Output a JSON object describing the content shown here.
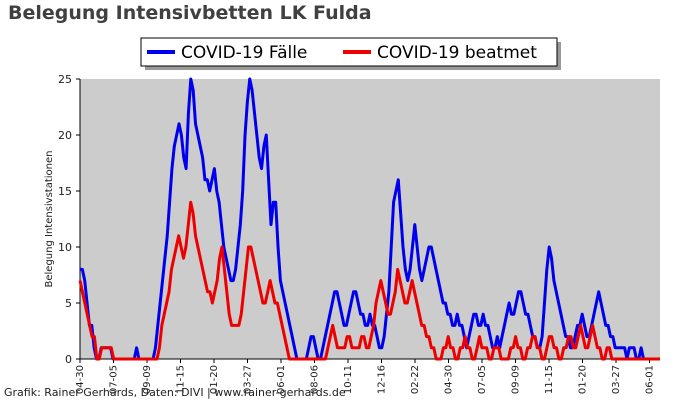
{
  "footer": "Grafik: Rainer Gerhards, Daten: DIVI | www.rainer-gerhards.de",
  "chart_data": {
    "type": "line",
    "title": "Belegung Intensivbetten LK Fulda",
    "xlabel": "",
    "ylabel": "Belegung Intensivstationen",
    "ylim": [
      0,
      25
    ],
    "yticks": [
      0,
      5,
      10,
      15,
      20,
      25
    ],
    "xticks": [
      "04-30",
      "07-05",
      "09-09",
      "11-15",
      "01-20",
      "03-27",
      "06-01",
      "08-06",
      "10-11",
      "12-16",
      "02-22",
      "04-30",
      "07-05",
      "09-09",
      "11-15",
      "01-20",
      "03-27",
      "06-01"
    ],
    "grid": false,
    "legend_position": "top-center",
    "background": "#cccccc",
    "series": [
      {
        "name": "COVID-19 Fälle",
        "color": "#0000ee",
        "values": [
          8,
          8,
          7,
          5,
          3,
          3,
          1,
          0,
          0,
          1,
          1,
          1,
          1,
          1,
          0,
          0,
          0,
          0,
          0,
          0,
          0,
          0,
          0,
          0,
          1,
          0,
          0,
          0,
          0,
          0,
          0,
          0,
          1,
          3,
          5,
          7,
          9,
          11,
          14,
          17,
          19,
          20,
          21,
          20,
          18,
          17,
          22,
          25,
          24,
          21,
          20,
          19,
          18,
          16,
          16,
          15,
          16,
          17,
          15,
          14,
          12,
          10,
          9,
          8,
          7,
          7,
          8,
          10,
          12,
          15,
          20,
          23,
          25,
          24,
          22,
          20,
          18,
          17,
          19,
          20,
          16,
          12,
          14,
          14,
          10,
          7,
          6,
          5,
          4,
          3,
          2,
          1,
          0,
          0,
          0,
          0,
          0,
          1,
          2,
          2,
          1,
          0,
          0,
          1,
          2,
          3,
          4,
          5,
          6,
          6,
          5,
          4,
          3,
          3,
          4,
          5,
          6,
          6,
          5,
          4,
          4,
          3,
          3,
          4,
          3,
          3,
          2,
          1,
          1,
          2,
          4,
          6,
          10,
          14,
          15,
          16,
          13,
          10,
          8,
          7,
          8,
          10,
          12,
          10,
          8,
          7,
          8,
          9,
          10,
          10,
          9,
          8,
          7,
          6,
          5,
          5,
          4,
          4,
          3,
          3,
          4,
          3,
          3,
          2,
          1,
          2,
          3,
          4,
          4,
          3,
          3,
          4,
          3,
          3,
          2,
          1,
          1,
          2,
          1,
          2,
          3,
          4,
          5,
          4,
          4,
          5,
          6,
          6,
          5,
          4,
          4,
          3,
          2,
          2,
          1,
          1,
          2,
          5,
          8,
          10,
          9,
          7,
          6,
          5,
          4,
          3,
          2,
          2,
          1,
          1,
          2,
          3,
          3,
          4,
          3,
          2,
          2,
          3,
          4,
          5,
          6,
          5,
          4,
          3,
          3,
          2,
          2,
          1,
          1,
          1,
          1,
          1,
          0,
          1,
          1,
          1,
          0,
          0,
          1,
          0,
          0,
          0,
          0,
          0,
          0,
          0,
          0
        ]
      },
      {
        "name": "COVID-19 beatmet",
        "color": "#ee0000",
        "values": [
          7,
          6,
          5,
          4,
          3,
          2,
          2,
          0,
          0,
          1,
          1,
          1,
          1,
          1,
          0,
          0,
          0,
          0,
          0,
          0,
          0,
          0,
          0,
          0,
          0,
          0,
          0,
          0,
          0,
          0,
          0,
          0,
          0,
          1,
          3,
          4,
          5,
          6,
          8,
          9,
          10,
          11,
          10,
          9,
          10,
          12,
          14,
          13,
          11,
          10,
          9,
          8,
          7,
          6,
          6,
          5,
          6,
          7,
          9,
          10,
          8,
          6,
          4,
          3,
          3,
          3,
          3,
          4,
          6,
          8,
          10,
          10,
          9,
          8,
          7,
          6,
          5,
          5,
          6,
          7,
          6,
          5,
          5,
          4,
          3,
          2,
          1,
          0,
          0,
          0,
          0,
          0,
          0,
          0,
          0,
          0,
          0,
          0,
          0,
          0,
          0,
          0,
          0,
          1,
          2,
          3,
          2,
          1,
          1,
          1,
          1,
          2,
          2,
          1,
          1,
          1,
          1,
          2,
          2,
          1,
          1,
          2,
          3,
          5,
          6,
          7,
          6,
          5,
          4,
          4,
          5,
          6,
          8,
          7,
          6,
          5,
          5,
          6,
          7,
          6,
          5,
          4,
          3,
          3,
          2,
          2,
          1,
          1,
          0,
          0,
          0,
          1,
          1,
          2,
          1,
          1,
          0,
          0,
          1,
          1,
          2,
          1,
          1,
          0,
          0,
          1,
          2,
          1,
          1,
          1,
          0,
          0,
          1,
          1,
          1,
          0,
          0,
          0,
          0,
          1,
          1,
          2,
          1,
          1,
          0,
          0,
          1,
          1,
          2,
          2,
          1,
          1,
          0,
          0,
          1,
          2,
          2,
          1,
          1,
          0,
          0,
          1,
          1,
          2,
          2,
          1,
          1,
          2,
          3,
          2,
          1,
          1,
          2,
          3,
          2,
          1,
          1,
          0,
          0,
          1,
          1,
          0,
          0,
          0,
          0,
          0,
          0,
          0,
          0,
          0,
          0,
          0,
          0,
          0,
          0,
          0,
          0,
          0,
          0,
          0,
          0,
          0
        ]
      }
    ]
  }
}
